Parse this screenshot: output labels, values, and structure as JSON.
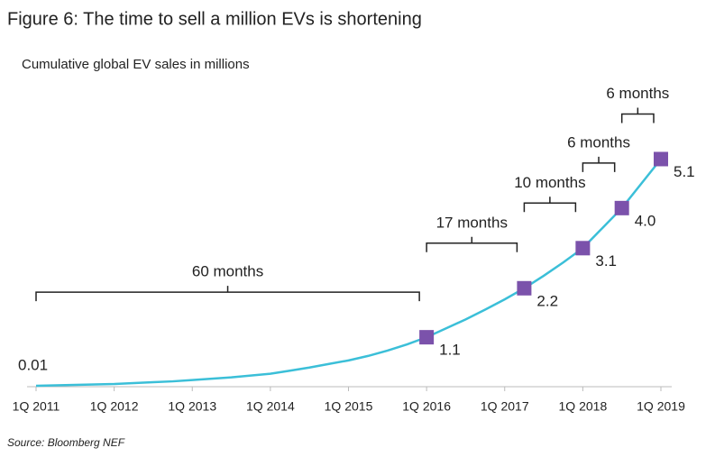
{
  "chart_data": {
    "type": "line",
    "title": "Figure 6: The time to sell a million EVs is shortening",
    "subtitle": "Cumulative global EV sales in millions",
    "source": "Source: Bloomberg NEF",
    "categories": [
      "1Q 2011",
      null,
      null,
      null,
      "1Q 2012",
      null,
      null,
      null,
      "1Q 2013",
      null,
      null,
      null,
      "1Q 2014",
      null,
      null,
      null,
      "1Q 2015",
      null,
      null,
      null,
      "1Q 2016",
      null,
      null,
      null,
      "1Q 2017",
      null,
      null,
      null,
      "1Q 2018",
      null,
      null,
      null,
      "1Q 2019"
    ],
    "series": [
      {
        "color": "#3bbfd8",
        "values": [
          0.01,
          0.02,
          0.03,
          0.04,
          0.05,
          0.07,
          0.09,
          0.11,
          0.14,
          0.17,
          0.2,
          0.24,
          0.28,
          0.35,
          0.42,
          0.5,
          0.58,
          0.68,
          0.8,
          0.94,
          1.1,
          1.3,
          1.5,
          1.72,
          1.95,
          2.2,
          2.48,
          2.78,
          3.1,
          3.55,
          4.0,
          4.55,
          5.1
        ],
        "value_labels": [
          "0.01",
          null,
          null,
          null,
          null,
          null,
          null,
          null,
          null,
          null,
          null,
          null,
          null,
          null,
          null,
          null,
          null,
          null,
          null,
          null,
          "1.1",
          null,
          null,
          null,
          null,
          "2.2",
          null,
          null,
          "3.1",
          null,
          "4.0",
          null,
          "5.1"
        ]
      }
    ],
    "marker_color": "#7b52ab",
    "marker_indices": [
      20,
      25,
      28,
      30,
      32
    ],
    "annotations": [
      {
        "text": "60 months",
        "from": 0,
        "to": 20
      },
      {
        "text": "17 months",
        "from": 20,
        "to": 25
      },
      {
        "text": "10 months",
        "from": 25,
        "to": 28
      },
      {
        "text": "6 months",
        "from": 28,
        "to": 30
      },
      {
        "text": "6 months",
        "from": 30,
        "to": 32
      }
    ],
    "ylim": [
      0,
      6
    ]
  }
}
